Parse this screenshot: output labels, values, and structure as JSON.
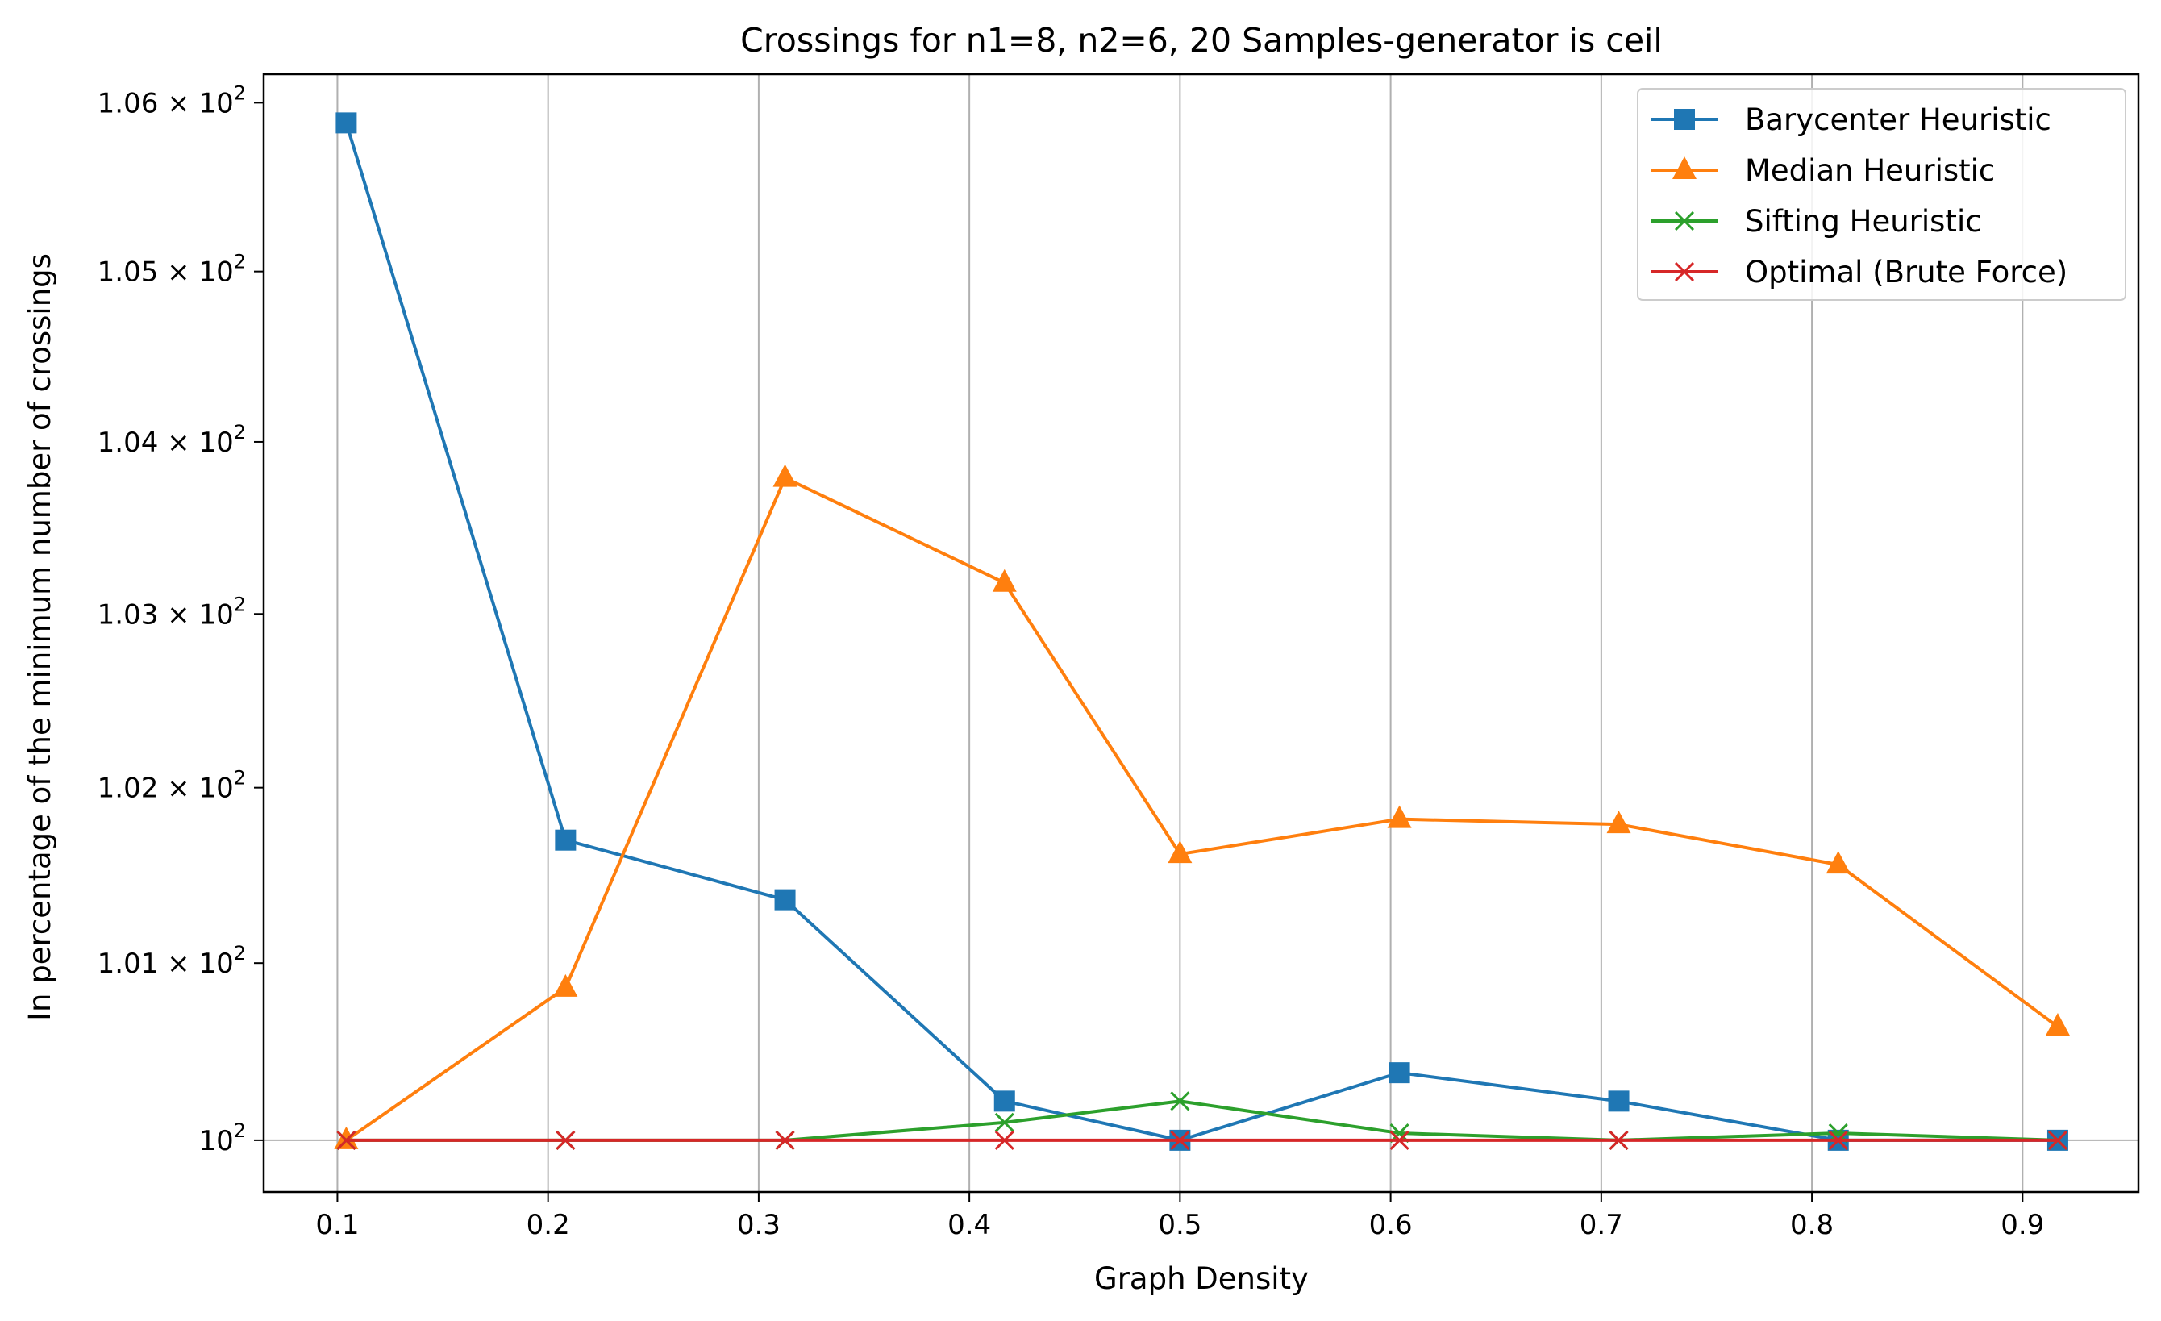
{
  "chart_data": {
    "type": "line",
    "title": "Crossings for n1=8, n2=6, 20 Samples-generator is ceil",
    "xlabel": "Graph Density",
    "ylabel": "In percentage of the minimum number of crossings",
    "yscale": "log",
    "xlim": [
      0.065,
      0.955
    ],
    "ylim": [
      99.71,
      106.17
    ],
    "xticks": [
      0.1,
      0.2,
      0.3,
      0.4,
      0.5,
      0.6,
      0.7,
      0.8,
      0.9
    ],
    "xtick_labels": [
      "0.1",
      "0.2",
      "0.3",
      "0.4",
      "0.5",
      "0.6",
      "0.7",
      "0.8",
      "0.9"
    ],
    "yticks": [
      100,
      101,
      102,
      103,
      104,
      105,
      106
    ],
    "ytick_labels": [
      {
        "mantissa": "",
        "exp": "2"
      },
      {
        "mantissa": "1.01",
        "exp": "2"
      },
      {
        "mantissa": "1.02",
        "exp": "2"
      },
      {
        "mantissa": "1.03",
        "exp": "2"
      },
      {
        "mantissa": "1.04",
        "exp": "2"
      },
      {
        "mantissa": "1.05",
        "exp": "2"
      },
      {
        "mantissa": "1.06",
        "exp": "2"
      }
    ],
    "ytick_base": "10",
    "ytick_times": "×",
    "grid": {
      "x": true,
      "y": false
    },
    "legend_position": "top-right",
    "x": [
      0.1042,
      0.2083,
      0.3125,
      0.4167,
      0.5,
      0.6042,
      0.7083,
      0.8125,
      0.9167
    ],
    "series": [
      {
        "name": "Barycenter Heuristic",
        "color": "#1f77b4",
        "marker": "square",
        "values": [
          105.88,
          101.7,
          101.36,
          100.22,
          100.0,
          100.38,
          100.22,
          100.0,
          100.0
        ]
      },
      {
        "name": "Median Heuristic",
        "color": "#ff7f0e",
        "marker": "triangle",
        "values": [
          100.0,
          100.86,
          103.79,
          103.18,
          101.62,
          101.82,
          101.79,
          101.56,
          100.64
        ]
      },
      {
        "name": "Sifting Heuristic",
        "color": "#2ca02c",
        "marker": "x",
        "values": [
          100.0,
          100.0,
          100.0,
          100.1,
          100.22,
          100.04,
          100.0,
          100.04,
          100.0
        ]
      },
      {
        "name": "Optimal (Brute Force)",
        "color": "#d62728",
        "marker": "x",
        "values": [
          100.0,
          100.0,
          100.0,
          100.0,
          100.0,
          100.0,
          100.0,
          100.0,
          100.0
        ]
      }
    ]
  }
}
